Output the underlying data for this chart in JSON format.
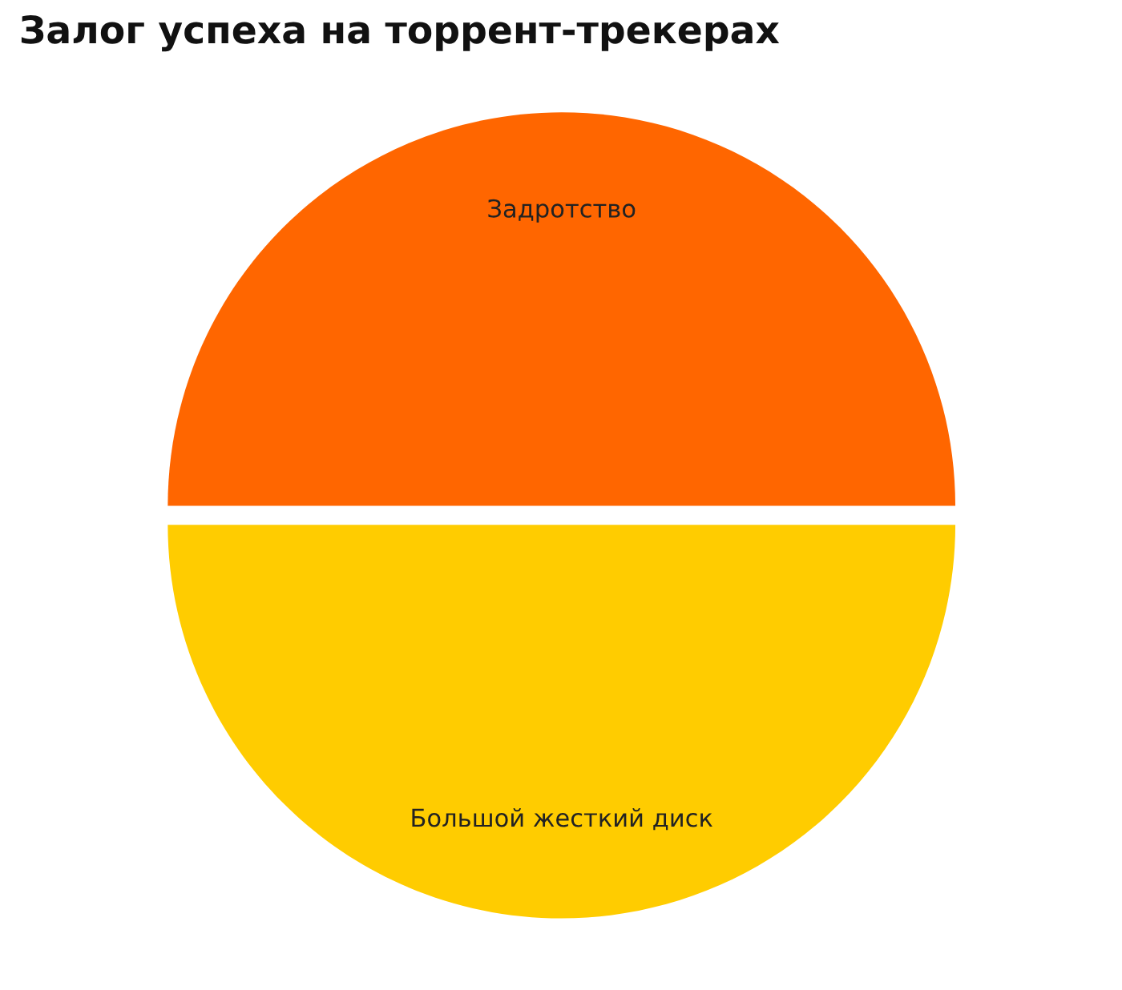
{
  "chart_data": {
    "type": "pie",
    "title": "Залог успеха на торрент-трекерах",
    "categories": [
      "Задротство",
      "Большой жесткий диск"
    ],
    "values": [
      50,
      50
    ],
    "colors": [
      "#ff6600",
      "#ffcc00"
    ]
  }
}
